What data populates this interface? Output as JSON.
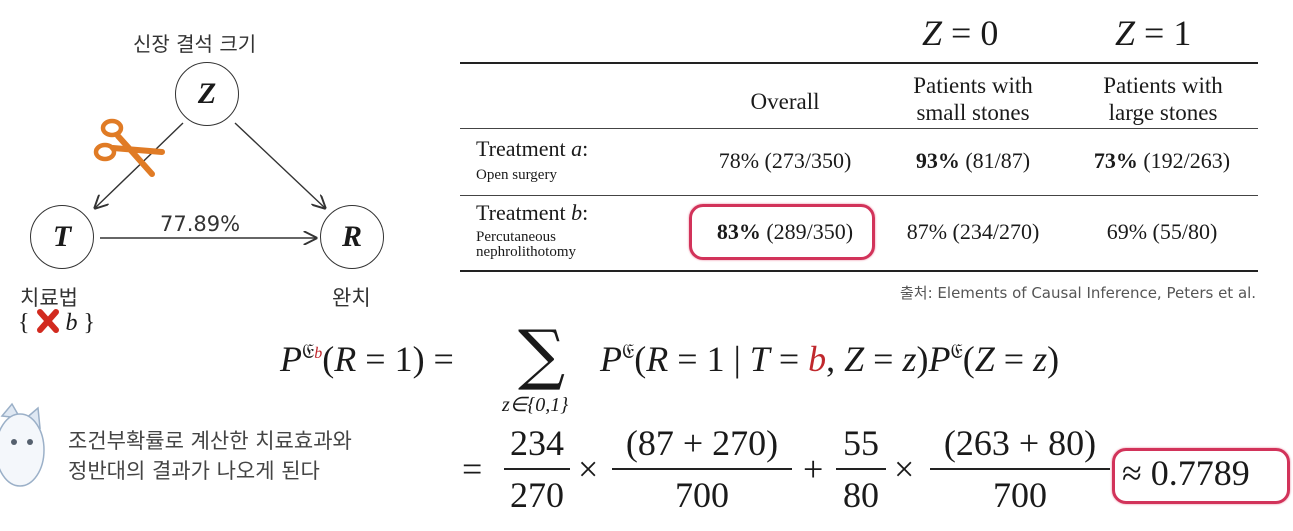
{
  "diagram": {
    "z_caption": "신장 결석 크기",
    "z_node": "Z",
    "t_node": "T",
    "r_node": "R",
    "edge_label": "77.89%",
    "t_caption": "치료법",
    "t_set_open": "{",
    "t_set_value": "b",
    "t_set_close": "}",
    "r_caption": "완치",
    "icons": [
      "scissors-icon",
      "red-x-icon"
    ]
  },
  "table": {
    "group_headers": [
      "Z = 0",
      "Z = 1"
    ],
    "columns": [
      "Overall",
      "Patients with small stones",
      "Patients with large stones"
    ],
    "column_lines": [
      [
        "Overall"
      ],
      [
        "Patients with",
        "small stones"
      ],
      [
        "Patients with",
        "large stones"
      ]
    ],
    "rows": [
      {
        "label": "Treatment a:",
        "label_prefix": "Treatment ",
        "label_var": "a",
        "label_suffix": ":",
        "sublabel": "Open surgery",
        "cells": [
          {
            "bold": "",
            "rest": "78% (273/350)"
          },
          {
            "bold": "93%",
            "rest": " (81/87)"
          },
          {
            "bold": "73%",
            "rest": " (192/263)"
          }
        ]
      },
      {
        "label": "Treatment b:",
        "label_prefix": "Treatment ",
        "label_var": "b",
        "label_suffix": ":",
        "sublabel_lines": [
          "Percutaneous",
          "nephrolithotomy"
        ],
        "cells": [
          {
            "bold": "83%",
            "rest": " (289/350)"
          },
          {
            "bold": "",
            "rest": "87% (234/270)"
          },
          {
            "bold": "",
            "rest": "69% (55/80)"
          }
        ]
      }
    ],
    "source": "출처: Elements of Causal Inference, Peters et al."
  },
  "note": {
    "lines": [
      "조건부확률로 계산한 치료효과와",
      "정반대의 결과가 나오게 된다"
    ]
  },
  "formula": {
    "lhs": "P𝔈b(R = 1) =",
    "sum_sub": "z∈{0,1}",
    "term": "P𝔈(R = 1 | T = b, Z = z)P𝔈(Z = z)",
    "frac1_num": "234",
    "frac1_den": "270",
    "frac2_num": "(87 + 270)",
    "frac2_den": "700",
    "frac3_num": "55",
    "frac3_den": "80",
    "frac4_num": "(263 + 80)",
    "frac4_den": "700",
    "result": "≈ 0.7789",
    "colors": {
      "highlight": "#d2335a",
      "red_var": "#c0282d"
    }
  }
}
